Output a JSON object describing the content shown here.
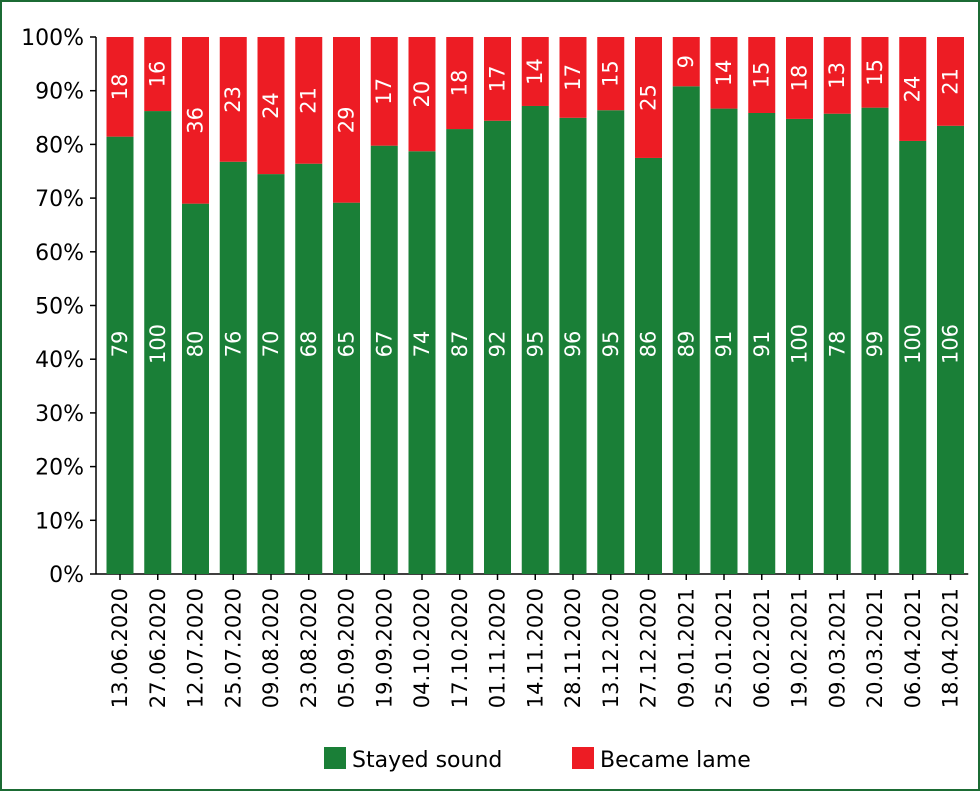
{
  "chart_data": {
    "type": "bar",
    "stacked": true,
    "normalized": true,
    "title": "",
    "xlabel": "",
    "ylabel": "",
    "ylim": [
      0,
      100
    ],
    "yticks": [
      "0%",
      "10%",
      "20%",
      "30%",
      "40%",
      "50%",
      "60%",
      "70%",
      "80%",
      "90%",
      "100%"
    ],
    "categories": [
      "13.06.2020",
      "27.06.2020",
      "12.07.2020",
      "25.07.2020",
      "09.08.2020",
      "23.08.2020",
      "05.09.2020",
      "19.09.2020",
      "04.10.2020",
      "17.10.2020",
      "01.11.2020",
      "14.11.2020",
      "28.11.2020",
      "13.12.2020",
      "27.12.2020",
      "09.01.2021",
      "25.01.2021",
      "06.02.2021",
      "19.02.2021",
      "09.03.2021",
      "20.03.2021",
      "06.04.2021",
      "18.04.2021"
    ],
    "series": [
      {
        "name": "Stayed sound",
        "color": "#1a7f37",
        "values": [
          79,
          100,
          80,
          76,
          70,
          68,
          65,
          67,
          74,
          87,
          92,
          95,
          96,
          95,
          86,
          89,
          91,
          91,
          100,
          78,
          99,
          100,
          106
        ]
      },
      {
        "name": "Became lame",
        "color": "#ed1c24",
        "values": [
          18,
          16,
          36,
          23,
          24,
          21,
          29,
          17,
          20,
          18,
          17,
          14,
          17,
          15,
          25,
          9,
          14,
          15,
          18,
          13,
          15,
          24,
          21
        ]
      }
    ],
    "legend": "bottom",
    "grid": false
  }
}
